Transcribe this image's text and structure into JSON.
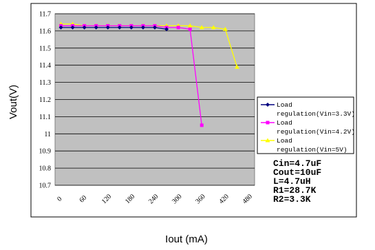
{
  "chart_data": {
    "type": "line",
    "xlabel": "Iout (mA)",
    "ylabel": "Vout(V)",
    "ylim": [
      10.7,
      11.7
    ],
    "yticks": [
      "11.7",
      "11.6",
      "11.5",
      "11.4",
      "11.3",
      "11.2",
      "11.1",
      "11",
      "10.9",
      "10.8",
      "10.7"
    ],
    "xticks": [
      "0",
      "30",
      "60",
      "90",
      "120",
      "150",
      "180",
      "210",
      "240",
      "270",
      "300",
      "330",
      "360",
      "390",
      "420",
      "450",
      "480"
    ],
    "xticks_visible": [
      "0",
      "60",
      "120",
      "180",
      "240",
      "300",
      "360",
      "420",
      "480"
    ],
    "xlim": [
      0,
      480
    ],
    "grid": true,
    "plot_background": "#c0c0c0",
    "legend_position": "right",
    "series": [
      {
        "name": "Load regulation(Vin=3.3V)",
        "color": "#000080",
        "marker": "diamond",
        "x": [
          0,
          30,
          60,
          90,
          120,
          150,
          180,
          210,
          240,
          270
        ],
        "y": [
          11.62,
          11.62,
          11.62,
          11.62,
          11.62,
          11.62,
          11.62,
          11.62,
          11.62,
          11.61
        ]
      },
      {
        "name": "Load regulation(Vin=4.2V)",
        "color": "#ff00ff",
        "marker": "square",
        "x": [
          0,
          30,
          60,
          90,
          120,
          150,
          180,
          210,
          240,
          270,
          300,
          330,
          360
        ],
        "y": [
          11.63,
          11.63,
          11.63,
          11.63,
          11.63,
          11.63,
          11.63,
          11.63,
          11.63,
          11.62,
          11.62,
          11.61,
          11.05
        ]
      },
      {
        "name": "Load regulation(Vin=5V)",
        "color": "#ffff00",
        "marker": "triangle",
        "x": [
          0,
          30,
          60,
          90,
          120,
          150,
          180,
          210,
          240,
          270,
          300,
          330,
          360,
          390,
          420,
          450
        ],
        "y": [
          11.64,
          11.64,
          11.63,
          11.63,
          11.63,
          11.63,
          11.63,
          11.63,
          11.63,
          11.63,
          11.63,
          11.63,
          11.62,
          11.62,
          11.61,
          11.39
        ]
      }
    ],
    "annotations": [
      "Cin=4.7uF",
      "Cout=10uF",
      "L=4.7uH",
      "R1=28.7K",
      "R2=3.3K"
    ]
  }
}
